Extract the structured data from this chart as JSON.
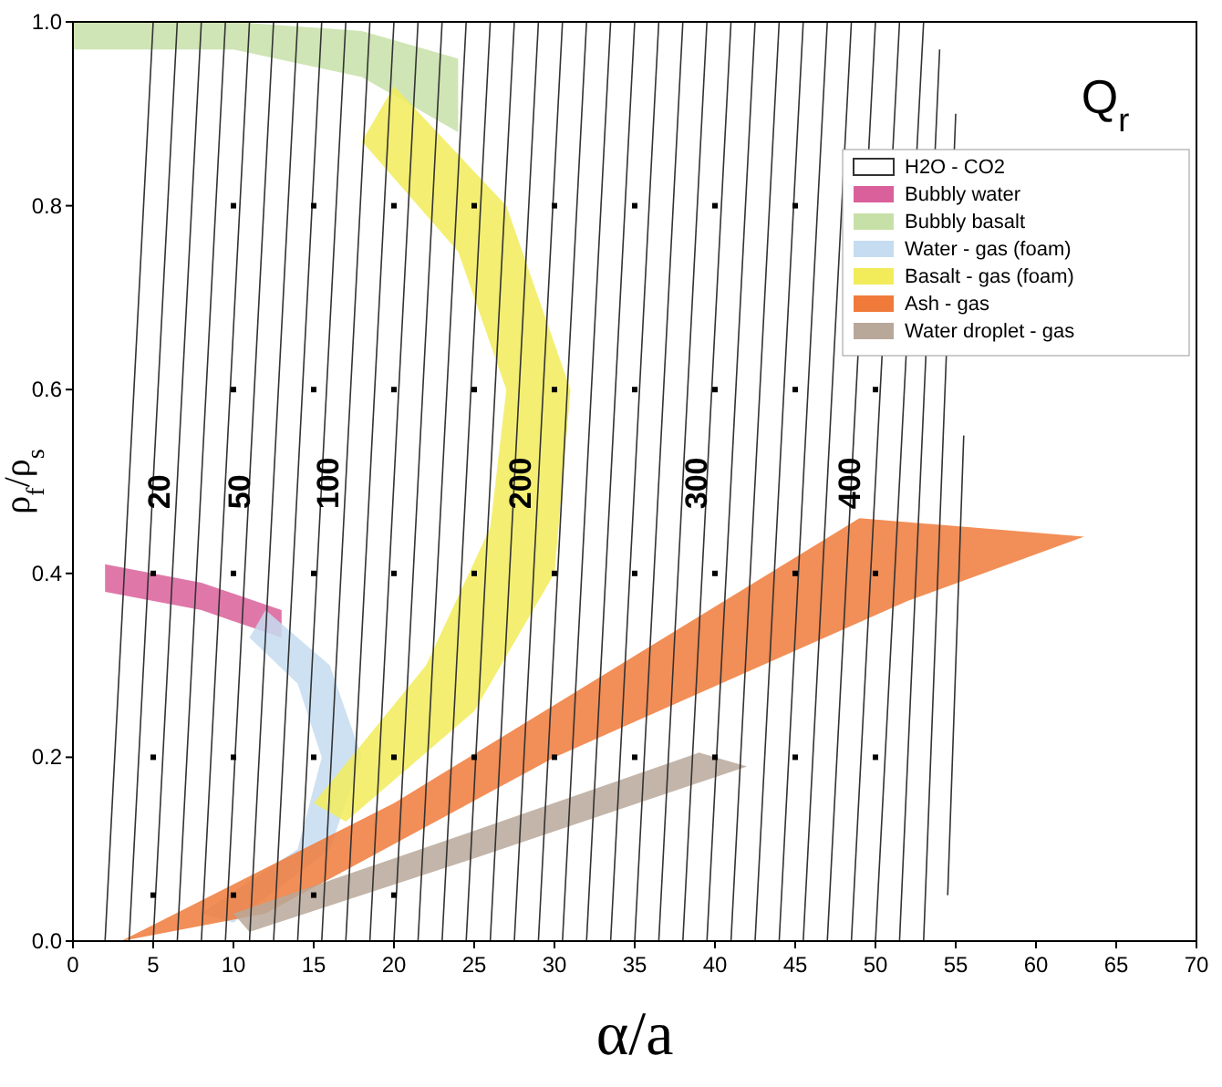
{
  "chart_data": {
    "type": "line",
    "title": "Q$_{r}$",
    "xlabel": "α/a",
    "ylabel": "ρ$_{f}$/ρ$_{s}$",
    "xlim": [
      0,
      70
    ],
    "xticks": [
      0,
      5,
      10,
      15,
      20,
      25,
      30,
      35,
      40,
      45,
      50,
      55,
      60,
      65,
      70
    ],
    "ylim": [
      0,
      1
    ],
    "yticks": [
      {
        "value": 0,
        "label": "0.0"
      },
      {
        "value": 0.2,
        "label": "0.2"
      },
      {
        "value": 0.4,
        "label": "0.4"
      },
      {
        "value": 0.6,
        "label": "0.6"
      },
      {
        "value": 0.8,
        "label": "0.8"
      },
      {
        "value": 1,
        "label": "1.0"
      }
    ],
    "grid": false,
    "legend": "top right",
    "series": [
      {
        "type": "area",
        "name": "Bubbly water",
        "color": "#d9609a",
        "x": [
          2,
          8,
          13,
          13,
          8,
          2
        ],
        "values": [
          0.41,
          0.39,
          0.36,
          0.33,
          0.36,
          0.38
        ]
      },
      {
        "type": "area",
        "name": "Bubbly basalt",
        "color": "#c7e0a8",
        "x": [
          0,
          10,
          18,
          24,
          24,
          18,
          10,
          0
        ],
        "values": [
          1.0,
          1.0,
          0.99,
          0.96,
          0.88,
          0.94,
          0.97,
          0.97
        ]
      },
      {
        "type": "area",
        "name": "Water - gas (foam)",
        "color": "#c6dcf0",
        "x": [
          12,
          16,
          18,
          16,
          10,
          8,
          14,
          15.5,
          14,
          11
        ],
        "values": [
          0.36,
          0.3,
          0.2,
          0.1,
          0.02,
          0.03,
          0.1,
          0.2,
          0.28,
          0.33
        ]
      },
      {
        "type": "area",
        "name": "Basalt - gas (foam)",
        "color": "#f2ec5a",
        "x": [
          20,
          27,
          31,
          30,
          25,
          17,
          15,
          22,
          26,
          27,
          24,
          18
        ],
        "values": [
          0.93,
          0.8,
          0.6,
          0.4,
          0.25,
          0.13,
          0.15,
          0.3,
          0.45,
          0.6,
          0.75,
          0.87
        ]
      },
      {
        "type": "area",
        "name": "Ash - gas",
        "color": "#f07a3a",
        "x": [
          3,
          20,
          49,
          63,
          52,
          30,
          12
        ],
        "values": [
          0,
          0.15,
          0.46,
          0.44,
          0.37,
          0.2,
          0.03
        ]
      },
      {
        "type": "area",
        "name": "Water droplet - gas",
        "color": "#b8a89a",
        "x": [
          10,
          25,
          39,
          42,
          25,
          11
        ],
        "values": [
          0.03,
          0.12,
          0.205,
          0.19,
          0.09,
          0.01
        ]
      },
      {
        "name": "H2O - CO2",
        "color": "#333333",
        "x": [
          2,
          5,
          null,
          3.5,
          6.5,
          null,
          5,
          8,
          null,
          6.5,
          9.5,
          null,
          8,
          11,
          null,
          9.5,
          12.5,
          null,
          11,
          14,
          null,
          12.5,
          15.5,
          null,
          14,
          17,
          null,
          15.5,
          18.5,
          null,
          17,
          20,
          null,
          18.5,
          21.5,
          null,
          20,
          23,
          null,
          21.5,
          24.5,
          null,
          23,
          26,
          null,
          24.5,
          27.5,
          null,
          26,
          29,
          null,
          27.5,
          30.5,
          null,
          29,
          32,
          null,
          30.5,
          33.5,
          null,
          32,
          35,
          null,
          33.5,
          36.5,
          null,
          35,
          38,
          null,
          36.5,
          39.5,
          null,
          38,
          41,
          null,
          39.5,
          42.5,
          null,
          41,
          44,
          null,
          42.5,
          45.5,
          null,
          44,
          47,
          null,
          45.5,
          48.5,
          null,
          47,
          50,
          null,
          48.5,
          51.5,
          null,
          50,
          53,
          null,
          51.5,
          54,
          null,
          53,
          55,
          null,
          54.5,
          55.5
        ],
        "values": [
          0,
          1,
          null,
          0,
          1,
          null,
          0,
          1,
          null,
          0,
          1,
          null,
          0,
          1,
          null,
          0,
          1,
          null,
          0,
          1,
          null,
          0,
          1,
          null,
          0,
          1,
          null,
          0,
          1,
          null,
          0,
          1,
          null,
          0,
          1,
          null,
          0,
          1,
          null,
          0,
          1,
          null,
          0,
          1,
          null,
          0,
          1,
          null,
          0,
          1,
          null,
          0,
          1,
          null,
          0,
          1,
          null,
          0,
          1,
          null,
          0,
          1,
          null,
          0,
          1,
          null,
          0,
          1,
          null,
          0,
          1,
          null,
          0,
          1,
          null,
          0,
          1,
          null,
          0,
          1,
          null,
          0,
          1,
          null,
          0,
          1,
          null,
          0,
          1,
          null,
          0,
          1,
          null,
          0,
          1,
          null,
          0,
          1,
          null,
          0,
          0.97,
          null,
          0,
          0.9,
          null,
          0.05,
          0.55
        ]
      },
      {
        "type": "scatter",
        "color": "#000000",
        "marker": "square",
        "x": [
          5,
          10,
          15,
          20,
          25,
          30,
          35,
          40,
          45,
          50,
          5,
          10,
          15,
          20,
          25,
          30,
          35,
          40,
          45,
          50,
          10,
          15,
          20,
          25,
          30,
          35,
          40,
          45,
          50,
          10,
          15,
          20,
          25,
          30,
          35,
          40,
          45,
          5,
          10,
          15,
          20
        ],
        "values": [
          0.2,
          0.2,
          0.2,
          0.2,
          0.2,
          0.2,
          0.2,
          0.2,
          0.2,
          0.2,
          0.4,
          0.4,
          0.4,
          0.4,
          0.4,
          0.4,
          0.4,
          0.4,
          0.4,
          0.4,
          0.6,
          0.6,
          0.6,
          0.6,
          0.6,
          0.6,
          0.6,
          0.6,
          0.6,
          0.8,
          0.8,
          0.8,
          0.8,
          0.8,
          0.8,
          0.8,
          0.8,
          0.05,
          0.05,
          0.05,
          0.05
        ]
      }
    ],
    "annotations": [
      {
        "text": "20",
        "x": 5.5,
        "y": 0.47
      },
      {
        "text": "50",
        "x": 10.5,
        "y": 0.47
      },
      {
        "text": "100",
        "x": 16,
        "y": 0.47
      },
      {
        "text": "200",
        "x": 28,
        "y": 0.47
      },
      {
        "text": "300",
        "x": 39,
        "y": 0.47
      },
      {
        "text": "400",
        "x": 48.5,
        "y": 0.47
      }
    ]
  }
}
